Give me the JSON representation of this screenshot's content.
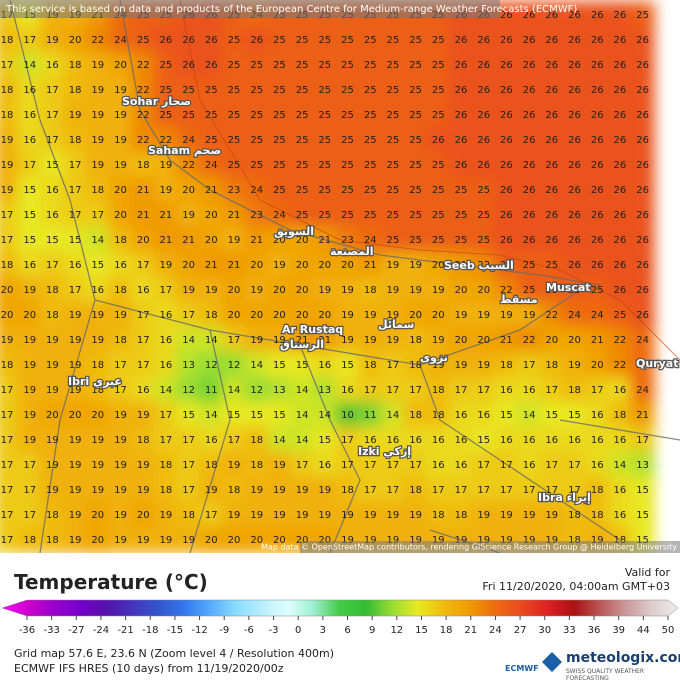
{
  "header": {
    "notice": "This service is based on data and products of the European Centre for Medium-range Weather Forecasts (ECMWF)"
  },
  "map": {
    "grid": [
      [
        17,
        15,
        19,
        19,
        21,
        24,
        25,
        25,
        26,
        26,
        25,
        24,
        25,
        25,
        25,
        25,
        25,
        25,
        25,
        25,
        26,
        26,
        26,
        26,
        26,
        26,
        26,
        26,
        25
      ],
      [
        18,
        17,
        19,
        20,
        22,
        24,
        25,
        26,
        26,
        26,
        25,
        26,
        25,
        25,
        25,
        25,
        25,
        25,
        25,
        25,
        26,
        26,
        26,
        26,
        26,
        26,
        26,
        26,
        26
      ],
      [
        17,
        14,
        16,
        18,
        19,
        20,
        22,
        25,
        26,
        26,
        25,
        25,
        25,
        25,
        25,
        25,
        25,
        25,
        25,
        25,
        26,
        26,
        26,
        26,
        26,
        26,
        26,
        26,
        26
      ],
      [
        18,
        16,
        17,
        18,
        19,
        19,
        22,
        25,
        25,
        25,
        25,
        25,
        25,
        25,
        25,
        25,
        25,
        25,
        25,
        25,
        26,
        26,
        26,
        26,
        26,
        26,
        26,
        26,
        26
      ],
      [
        18,
        16,
        17,
        19,
        19,
        19,
        22,
        25,
        25,
        25,
        25,
        25,
        25,
        25,
        25,
        25,
        25,
        25,
        25,
        25,
        26,
        26,
        26,
        26,
        26,
        26,
        26,
        26,
        26
      ],
      [
        19,
        16,
        17,
        18,
        19,
        19,
        22,
        22,
        24,
        25,
        25,
        25,
        25,
        25,
        25,
        25,
        25,
        25,
        25,
        26,
        26,
        26,
        26,
        26,
        26,
        26,
        26,
        26,
        26
      ],
      [
        19,
        17,
        15,
        17,
        19,
        19,
        18,
        19,
        22,
        24,
        25,
        25,
        25,
        25,
        25,
        25,
        25,
        25,
        25,
        25,
        26,
        26,
        26,
        26,
        26,
        26,
        26,
        26,
        26
      ],
      [
        19,
        15,
        16,
        17,
        18,
        20,
        21,
        19,
        20,
        21,
        23,
        24,
        25,
        25,
        25,
        25,
        25,
        25,
        25,
        25,
        25,
        25,
        26,
        26,
        26,
        26,
        26,
        26,
        26
      ],
      [
        17,
        15,
        16,
        17,
        17,
        20,
        21,
        21,
        19,
        20,
        21,
        23,
        24,
        25,
        25,
        25,
        25,
        25,
        25,
        25,
        25,
        25,
        26,
        26,
        26,
        26,
        26,
        26,
        26
      ],
      [
        17,
        15,
        15,
        15,
        14,
        18,
        20,
        21,
        21,
        20,
        19,
        21,
        20,
        20,
        21,
        23,
        24,
        25,
        25,
        25,
        25,
        25,
        26,
        26,
        26,
        26,
        26,
        26,
        26
      ],
      [
        18,
        16,
        17,
        16,
        15,
        16,
        17,
        19,
        20,
        21,
        21,
        20,
        19,
        20,
        20,
        20,
        21,
        19,
        19,
        20,
        21,
        22,
        25,
        25,
        25,
        26,
        26,
        26,
        26
      ],
      [
        20,
        19,
        18,
        17,
        16,
        18,
        16,
        17,
        19,
        19,
        20,
        19,
        20,
        20,
        19,
        19,
        18,
        19,
        19,
        19,
        20,
        20,
        22,
        25,
        25,
        25,
        25,
        26,
        26
      ],
      [
        20,
        20,
        18,
        19,
        19,
        19,
        17,
        16,
        17,
        18,
        20,
        20,
        20,
        20,
        20,
        19,
        19,
        19,
        20,
        20,
        19,
        19,
        19,
        19,
        22,
        24,
        24,
        25,
        26
      ],
      [
        19,
        19,
        19,
        19,
        19,
        18,
        17,
        16,
        14,
        14,
        17,
        19,
        19,
        21,
        21,
        19,
        19,
        19,
        18,
        19,
        20,
        20,
        21,
        22,
        20,
        20,
        21,
        22,
        24
      ],
      [
        18,
        19,
        19,
        19,
        18,
        17,
        17,
        16,
        13,
        12,
        12,
        14,
        15,
        15,
        16,
        15,
        18,
        17,
        18,
        19,
        19,
        19,
        18,
        17,
        18,
        19,
        20,
        22,
        24
      ],
      [
        17,
        19,
        19,
        19,
        18,
        17,
        16,
        14,
        12,
        11,
        14,
        12,
        13,
        14,
        13,
        16,
        17,
        17,
        17,
        18,
        17,
        17,
        16,
        16,
        17,
        18,
        17,
        16,
        24
      ],
      [
        17,
        19,
        20,
        20,
        20,
        19,
        19,
        17,
        15,
        14,
        15,
        15,
        15,
        14,
        14,
        10,
        11,
        14,
        18,
        18,
        16,
        16,
        15,
        14,
        15,
        15,
        16,
        18,
        21
      ],
      [
        17,
        19,
        19,
        19,
        19,
        19,
        18,
        17,
        17,
        16,
        17,
        18,
        14,
        14,
        15,
        17,
        16,
        16,
        16,
        16,
        16,
        15,
        16,
        16,
        16,
        16,
        16,
        16,
        17
      ],
      [
        17,
        17,
        19,
        19,
        19,
        19,
        19,
        18,
        17,
        18,
        19,
        18,
        19,
        17,
        16,
        17,
        17,
        17,
        17,
        16,
        16,
        17,
        17,
        16,
        17,
        17,
        16,
        14,
        13
      ],
      [
        17,
        17,
        19,
        19,
        19,
        19,
        19,
        18,
        17,
        19,
        18,
        19,
        19,
        19,
        19,
        18,
        17,
        17,
        18,
        17,
        17,
        17,
        17,
        17,
        17,
        17,
        18,
        16,
        15
      ],
      [
        17,
        17,
        18,
        19,
        20,
        19,
        20,
        19,
        18,
        17,
        19,
        19,
        19,
        19,
        19,
        19,
        19,
        19,
        19,
        18,
        18,
        19,
        19,
        19,
        19,
        18,
        18,
        16,
        15
      ],
      [
        17,
        18,
        18,
        19,
        20,
        19,
        19,
        19,
        19,
        20,
        20,
        20,
        20,
        20,
        20,
        19,
        19,
        19,
        19,
        19,
        19,
        19,
        19,
        19,
        19,
        18,
        19,
        18,
        15
      ]
    ],
    "places": [
      "Sohar صحار",
      "Saham صحم",
      "السويق",
      "المصنعة",
      "Ar Rustaq",
      "الرستاق",
      "Seeb السيب",
      "Muscat",
      "مسقط",
      "Ibri عبري",
      "Izki إزكي",
      "Quryat",
      "Ibra إبراء",
      "نزوى",
      "سمائل"
    ],
    "attribution": "Map data © OpenStreetMap contributors, rendering GIScience Research Group @ Heidelberg University"
  },
  "legend": {
    "title": "Temperature (°C)",
    "ticks": [
      -36,
      -33,
      -27,
      -24,
      -21,
      -18,
      -15,
      -12,
      -9,
      -6,
      -3,
      0,
      3,
      6,
      9,
      12,
      15,
      18,
      21,
      24,
      27,
      30,
      33,
      36,
      39,
      44,
      50
    ],
    "colors": [
      "#ff00ff",
      "#cc00cc",
      "#9900cc",
      "#7700cc",
      "#5511aa",
      "#4433bb",
      "#3355cc",
      "#3377ee",
      "#55aaff",
      "#88ddff",
      "#bbeeff",
      "#ddffff",
      "#99eecc",
      "#44cc44",
      "#33bb33",
      "#99dd33",
      "#e8e820",
      "#f0bb10",
      "#f09a00",
      "#ee6a10",
      "#e84820",
      "#dd2222",
      "#aa1111",
      "#bb5555",
      "#cc9999",
      "#ddcccc",
      "#eeeeee"
    ]
  },
  "footer": {
    "valid_label": "Valid for",
    "valid_time": "Fri 11/20/2020, 04:00am GMT+03",
    "grid_info": "Grid map 57.6 E, 23.6 N (Zoom level 4 / Resolution 400m)",
    "model_info": "ECMWF IFS HRES (10 days) from 11/19/2020/00z",
    "ecmwf_logo": "ECMWF",
    "brand": "meteologix.com",
    "tagline": "SWISS QUALITY WEATHER FORECASTING"
  }
}
